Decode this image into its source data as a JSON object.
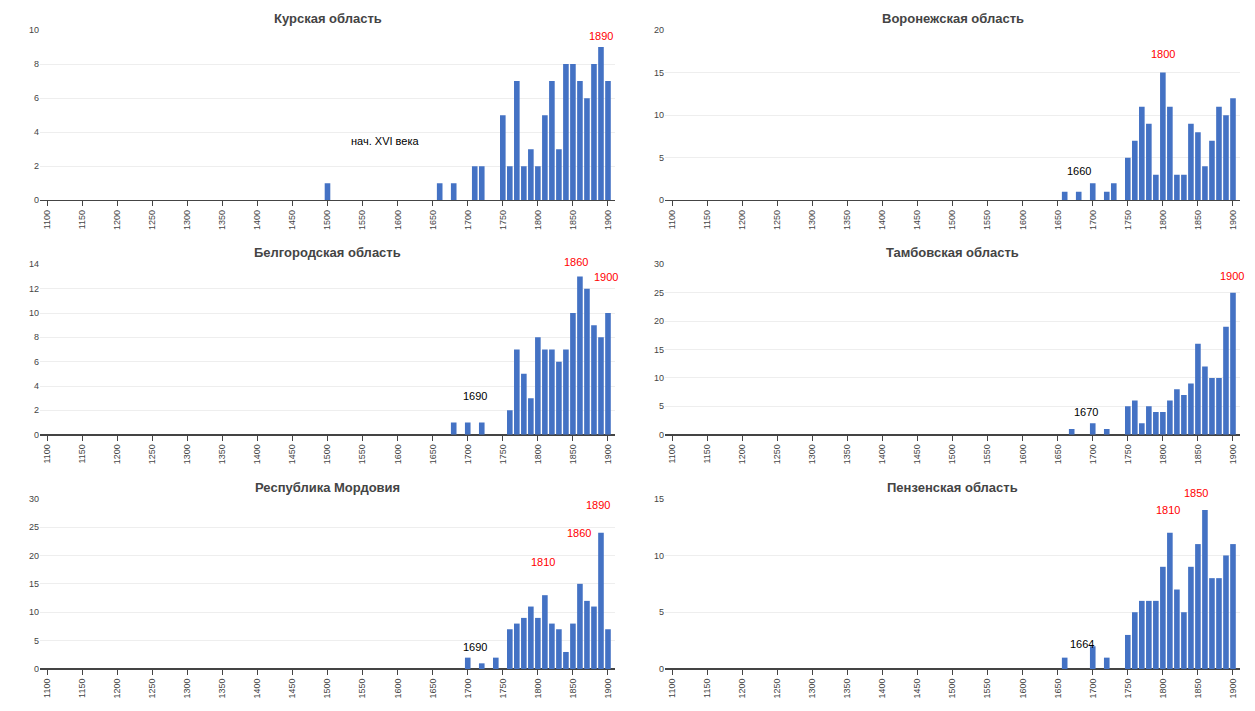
{
  "chart_data": [
    {
      "type": "bar",
      "title": "Курская область",
      "color": "#4472C4",
      "grid": true,
      "x": [
        1100,
        1110,
        1120,
        1130,
        1140,
        1150,
        1160,
        1170,
        1180,
        1190,
        1200,
        1210,
        1220,
        1230,
        1240,
        1250,
        1260,
        1270,
        1280,
        1290,
        1300,
        1310,
        1320,
        1330,
        1340,
        1350,
        1360,
        1370,
        1380,
        1390,
        1400,
        1410,
        1420,
        1430,
        1440,
        1450,
        1460,
        1470,
        1480,
        1490,
        1500,
        1510,
        1520,
        1530,
        1540,
        1550,
        1560,
        1570,
        1580,
        1590,
        1600,
        1610,
        1620,
        1630,
        1640,
        1650,
        1660,
        1670,
        1680,
        1690,
        1700,
        1710,
        1720,
        1730,
        1740,
        1750,
        1760,
        1770,
        1780,
        1790,
        1800,
        1810,
        1820,
        1830,
        1840,
        1850,
        1860,
        1870,
        1880,
        1890,
        1900
      ],
      "values": [
        0,
        0,
        0,
        0,
        0,
        0,
        0,
        0,
        0,
        0,
        0,
        0,
        0,
        0,
        0,
        0,
        0,
        0,
        0,
        0,
        0,
        0,
        0,
        0,
        0,
        0,
        0,
        0,
        0,
        0,
        0,
        0,
        0,
        0,
        0,
        0,
        0,
        0,
        0,
        0,
        1,
        0,
        0,
        0,
        0,
        0,
        0,
        0,
        0,
        0,
        0,
        0,
        0,
        0,
        0,
        0,
        1,
        0,
        1,
        0,
        0,
        2,
        2,
        0,
        0,
        5,
        2,
        7,
        2,
        3,
        2,
        5,
        7,
        3,
        8,
        8,
        7,
        6,
        8,
        9,
        7
      ],
      "xlim": [
        1090,
        1910
      ],
      "xticks": [
        1100,
        1150,
        1200,
        1250,
        1300,
        1350,
        1400,
        1450,
        1500,
        1550,
        1600,
        1650,
        1700,
        1750,
        1800,
        1850,
        1900
      ],
      "ylim": [
        0,
        10
      ],
      "yticks": [
        0,
        2,
        4,
        6,
        8,
        10
      ],
      "annotations": [
        {
          "text": "нач. XVI века",
          "x": 1530,
          "y": 3.0,
          "color": "black"
        },
        {
          "text": "1890",
          "x": 1890,
          "y": 9.2,
          "color": "red"
        }
      ]
    },
    {
      "type": "bar",
      "title": "Воронежская область",
      "color": "#4472C4",
      "grid": true,
      "x": [
        1100,
        1110,
        1120,
        1130,
        1140,
        1150,
        1160,
        1170,
        1180,
        1190,
        1200,
        1210,
        1220,
        1230,
        1240,
        1250,
        1260,
        1270,
        1280,
        1290,
        1300,
        1310,
        1320,
        1330,
        1340,
        1350,
        1360,
        1370,
        1380,
        1390,
        1400,
        1410,
        1420,
        1430,
        1440,
        1450,
        1460,
        1470,
        1480,
        1490,
        1500,
        1510,
        1520,
        1530,
        1540,
        1550,
        1560,
        1570,
        1580,
        1590,
        1600,
        1610,
        1620,
        1630,
        1640,
        1650,
        1660,
        1670,
        1680,
        1690,
        1700,
        1710,
        1720,
        1730,
        1740,
        1750,
        1760,
        1770,
        1780,
        1790,
        1800,
        1810,
        1820,
        1830,
        1840,
        1850,
        1860,
        1870,
        1880,
        1890,
        1900
      ],
      "values": [
        0,
        0,
        0,
        0,
        0,
        0,
        0,
        0,
        0,
        0,
        0,
        0,
        0,
        0,
        0,
        0,
        0,
        0,
        0,
        0,
        0,
        0,
        0,
        0,
        0,
        0,
        0,
        0,
        0,
        0,
        0,
        0,
        0,
        0,
        0,
        0,
        0,
        0,
        0,
        0,
        0,
        0,
        0,
        0,
        0,
        0,
        0,
        0,
        0,
        0,
        0,
        0,
        0,
        0,
        0,
        0,
        1,
        0,
        1,
        0,
        2,
        0,
        1,
        2,
        0,
        5,
        7,
        11,
        9,
        3,
        15,
        11,
        3,
        3,
        9,
        8,
        4,
        7,
        11,
        10,
        12
      ],
      "xlim": [
        1090,
        1910
      ],
      "xticks": [
        1100,
        1150,
        1200,
        1250,
        1300,
        1350,
        1400,
        1450,
        1500,
        1550,
        1600,
        1650,
        1700,
        1750,
        1800,
        1850,
        1900
      ],
      "ylim": [
        0,
        20
      ],
      "yticks": [
        0,
        5,
        10,
        15,
        20
      ],
      "annotations": [
        {
          "text": "1660",
          "x": 1660,
          "y": 2.5,
          "color": "black"
        },
        {
          "text": "1800",
          "x": 1800,
          "y": 16.3,
          "color": "red"
        }
      ]
    },
    {
      "type": "bar",
      "title": "Белгородская область",
      "color": "#4472C4",
      "grid": true,
      "x": [
        1100,
        1110,
        1120,
        1130,
        1140,
        1150,
        1160,
        1170,
        1180,
        1190,
        1200,
        1210,
        1220,
        1230,
        1240,
        1250,
        1260,
        1270,
        1280,
        1290,
        1300,
        1310,
        1320,
        1330,
        1340,
        1350,
        1360,
        1370,
        1380,
        1390,
        1400,
        1410,
        1420,
        1430,
        1440,
        1450,
        1460,
        1470,
        1480,
        1490,
        1500,
        1510,
        1520,
        1530,
        1540,
        1550,
        1560,
        1570,
        1580,
        1590,
        1600,
        1610,
        1620,
        1630,
        1640,
        1650,
        1660,
        1670,
        1680,
        1690,
        1700,
        1710,
        1720,
        1730,
        1740,
        1750,
        1760,
        1770,
        1780,
        1790,
        1800,
        1810,
        1820,
        1830,
        1840,
        1850,
        1860,
        1870,
        1880,
        1890,
        1900
      ],
      "values": [
        0,
        0,
        0,
        0,
        0,
        0,
        0,
        0,
        0,
        0,
        0,
        0,
        0,
        0,
        0,
        0,
        0,
        0,
        0,
        0,
        0,
        0,
        0,
        0,
        0,
        0,
        0,
        0,
        0,
        0,
        0,
        0,
        0,
        0,
        0,
        0,
        0,
        0,
        0,
        0,
        0,
        0,
        0,
        0,
        0,
        0,
        0,
        0,
        0,
        0,
        0,
        0,
        0,
        0,
        0,
        0,
        0,
        0,
        1,
        0,
        1,
        0,
        1,
        0,
        0,
        0,
        2,
        7,
        5,
        3,
        8,
        7,
        7,
        6,
        7,
        10,
        13,
        12,
        9,
        8,
        10
      ],
      "xlim": [
        1090,
        1910
      ],
      "xticks": [
        1100,
        1150,
        1200,
        1250,
        1300,
        1350,
        1400,
        1450,
        1500,
        1550,
        1600,
        1650,
        1700,
        1750,
        1800,
        1850,
        1900
      ],
      "ylim": [
        0,
        14
      ],
      "yticks": [
        0,
        2,
        4,
        6,
        8,
        10,
        12,
        14
      ],
      "annotations": [
        {
          "text": "1690",
          "x": 1690,
          "y": 2.5,
          "color": "black"
        },
        {
          "text": "1860",
          "x": 1855,
          "y": 13.5,
          "color": "red"
        },
        {
          "text": "1900",
          "x": 1897,
          "y": 12.3,
          "color": "red"
        }
      ]
    },
    {
      "type": "bar",
      "title": "Тамбовская область",
      "color": "#4472C4",
      "grid": true,
      "x": [
        1100,
        1110,
        1120,
        1130,
        1140,
        1150,
        1160,
        1170,
        1180,
        1190,
        1200,
        1210,
        1220,
        1230,
        1240,
        1250,
        1260,
        1270,
        1280,
        1290,
        1300,
        1310,
        1320,
        1330,
        1340,
        1350,
        1360,
        1370,
        1380,
        1390,
        1400,
        1410,
        1420,
        1430,
        1440,
        1450,
        1460,
        1470,
        1480,
        1490,
        1500,
        1510,
        1520,
        1530,
        1540,
        1550,
        1560,
        1570,
        1580,
        1590,
        1600,
        1610,
        1620,
        1630,
        1640,
        1650,
        1660,
        1670,
        1680,
        1690,
        1700,
        1710,
        1720,
        1730,
        1740,
        1750,
        1760,
        1770,
        1780,
        1790,
        1800,
        1810,
        1820,
        1830,
        1840,
        1850,
        1860,
        1870,
        1880,
        1890,
        1900
      ],
      "values": [
        0,
        0,
        0,
        0,
        0,
        0,
        0,
        0,
        0,
        0,
        0,
        0,
        0,
        0,
        0,
        0,
        0,
        0,
        0,
        0,
        0,
        0,
        0,
        0,
        0,
        0,
        0,
        0,
        0,
        0,
        0,
        0,
        0,
        0,
        0,
        0,
        0,
        0,
        0,
        0,
        0,
        0,
        0,
        0,
        0,
        0,
        0,
        0,
        0,
        0,
        0,
        0,
        0,
        0,
        0,
        0,
        0,
        1,
        0,
        0,
        2,
        0,
        1,
        0,
        0,
        5,
        6,
        2,
        5,
        4,
        4,
        6,
        8,
        7,
        9,
        16,
        12,
        10,
        10,
        19,
        25
      ],
      "xlim": [
        1090,
        1910
      ],
      "xticks": [
        1100,
        1150,
        1200,
        1250,
        1300,
        1350,
        1400,
        1450,
        1500,
        1550,
        1600,
        1650,
        1700,
        1750,
        1800,
        1850,
        1900
      ],
      "ylim": [
        0,
        30
      ],
      "yticks": [
        0,
        5,
        10,
        15,
        20,
        25,
        30
      ],
      "annotations": [
        {
          "text": "1670",
          "x": 1670,
          "y": 2.5,
          "color": "black"
        },
        {
          "text": "1900",
          "x": 1898,
          "y": 26.5,
          "color": "red"
        }
      ]
    },
    {
      "type": "bar",
      "title": "Республика Мордовия",
      "color": "#4472C4",
      "grid": true,
      "x": [
        1100,
        1110,
        1120,
        1130,
        1140,
        1150,
        1160,
        1170,
        1180,
        1190,
        1200,
        1210,
        1220,
        1230,
        1240,
        1250,
        1260,
        1270,
        1280,
        1290,
        1300,
        1310,
        1320,
        1330,
        1340,
        1350,
        1360,
        1370,
        1380,
        1390,
        1400,
        1410,
        1420,
        1430,
        1440,
        1450,
        1460,
        1470,
        1480,
        1490,
        1500,
        1510,
        1520,
        1530,
        1540,
        1550,
        1560,
        1570,
        1580,
        1590,
        1600,
        1610,
        1620,
        1630,
        1640,
        1650,
        1660,
        1670,
        1680,
        1690,
        1700,
        1710,
        1720,
        1730,
        1740,
        1750,
        1760,
        1770,
        1780,
        1790,
        1800,
        1810,
        1820,
        1830,
        1840,
        1850,
        1860,
        1870,
        1880,
        1890,
        1900
      ],
      "values": [
        0,
        0,
        0,
        0,
        0,
        0,
        0,
        0,
        0,
        0,
        0,
        0,
        0,
        0,
        0,
        0,
        0,
        0,
        0,
        0,
        0,
        0,
        0,
        0,
        0,
        0,
        0,
        0,
        0,
        0,
        0,
        0,
        0,
        0,
        0,
        0,
        0,
        0,
        0,
        0,
        0,
        0,
        0,
        0,
        0,
        0,
        0,
        0,
        0,
        0,
        0,
        0,
        0,
        0,
        0,
        0,
        0,
        0,
        0,
        0,
        2,
        0,
        1,
        0,
        2,
        0,
        7,
        8,
        9,
        11,
        9,
        13,
        8,
        7,
        3,
        8,
        15,
        12,
        11,
        24,
        7
      ],
      "xlim": [
        1090,
        1910
      ],
      "xticks": [
        1100,
        1150,
        1200,
        1250,
        1300,
        1350,
        1400,
        1450,
        1500,
        1550,
        1600,
        1650,
        1700,
        1750,
        1800,
        1850,
        1900
      ],
      "ylim": [
        0,
        30
      ],
      "yticks": [
        0,
        5,
        10,
        15,
        20,
        25,
        30
      ],
      "annotations": [
        {
          "text": "1690",
          "x": 1690,
          "y": 2.5,
          "color": "black"
        },
        {
          "text": "1890",
          "x": 1886,
          "y": 27.5,
          "color": "red"
        },
        {
          "text": "1860",
          "x": 1858,
          "y": 22.5,
          "color": "red"
        },
        {
          "text": "1810",
          "x": 1808,
          "y": 17.5,
          "color": "red"
        }
      ]
    },
    {
      "type": "bar",
      "title": "Пензенская область",
      "color": "#4472C4",
      "grid": true,
      "x": [
        1100,
        1110,
        1120,
        1130,
        1140,
        1150,
        1160,
        1170,
        1180,
        1190,
        1200,
        1210,
        1220,
        1230,
        1240,
        1250,
        1260,
        1270,
        1280,
        1290,
        1300,
        1310,
        1320,
        1330,
        1340,
        1350,
        1360,
        1370,
        1380,
        1390,
        1400,
        1410,
        1420,
        1430,
        1440,
        1450,
        1460,
        1470,
        1480,
        1490,
        1500,
        1510,
        1520,
        1530,
        1540,
        1550,
        1560,
        1570,
        1580,
        1590,
        1600,
        1610,
        1620,
        1630,
        1640,
        1650,
        1660,
        1670,
        1680,
        1690,
        1700,
        1710,
        1720,
        1730,
        1740,
        1750,
        1760,
        1770,
        1780,
        1790,
        1800,
        1810,
        1820,
        1830,
        1840,
        1850,
        1860,
        1870,
        1880,
        1890,
        1900
      ],
      "values": [
        0,
        0,
        0,
        0,
        0,
        0,
        0,
        0,
        0,
        0,
        0,
        0,
        0,
        0,
        0,
        0,
        0,
        0,
        0,
        0,
        0,
        0,
        0,
        0,
        0,
        0,
        0,
        0,
        0,
        0,
        0,
        0,
        0,
        0,
        0,
        0,
        0,
        0,
        0,
        0,
        0,
        0,
        0,
        0,
        0,
        0,
        0,
        0,
        0,
        0,
        0,
        0,
        0,
        0,
        0,
        0,
        1,
        0,
        0,
        0,
        2,
        0,
        1,
        0,
        0,
        3,
        5,
        6,
        6,
        6,
        9,
        12,
        7,
        5,
        9,
        11,
        14,
        8,
        8,
        10,
        11
      ],
      "xlim": [
        1090,
        1910
      ],
      "xticks": [
        1100,
        1150,
        1200,
        1250,
        1300,
        1350,
        1400,
        1450,
        1500,
        1550,
        1600,
        1650,
        1700,
        1750,
        1800,
        1850,
        1900
      ],
      "ylim": [
        0,
        15
      ],
      "yticks": [
        0,
        5,
        10,
        15
      ],
      "annotations": [
        {
          "text": "1664",
          "x": 1664,
          "y": 1.5,
          "color": "black"
        },
        {
          "text": "1850",
          "x": 1847,
          "y": 14.8,
          "color": "red"
        },
        {
          "text": "1810",
          "x": 1807,
          "y": 13.3,
          "color": "red"
        }
      ]
    }
  ]
}
